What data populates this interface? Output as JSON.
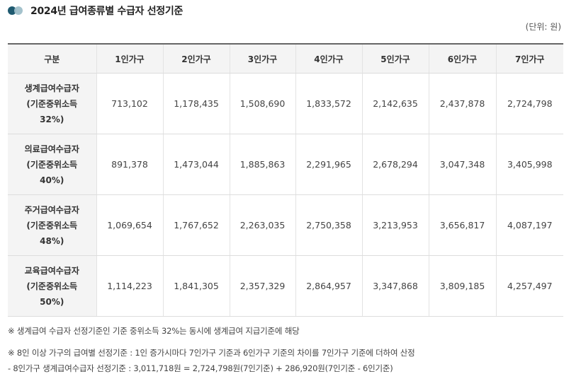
{
  "title": "2024년 급여종류별 수급자 선정기준",
  "unit": "(단위: 원)",
  "table": {
    "headers": [
      "구분",
      "1인가구",
      "2인가구",
      "3인가구",
      "4인가구",
      "5인가구",
      "6인가구",
      "7인가구"
    ],
    "rows": [
      {
        "label": [
          "생계급여수급자",
          "(기준중위소득",
          "32%)"
        ],
        "values": [
          "713,102",
          "1,178,435",
          "1,508,690",
          "1,833,572",
          "2,142,635",
          "2,437,878",
          "2,724,798"
        ]
      },
      {
        "label": [
          "의료급여수급자",
          "(기준중위소득",
          "40%)"
        ],
        "values": [
          "891,378",
          "1,473,044",
          "1,885,863",
          "2,291,965",
          "2,678,294",
          "3,047,348",
          "3,405,998"
        ]
      },
      {
        "label": [
          "주거급여수급자",
          "(기준중위소득",
          "48%)"
        ],
        "values": [
          "1,069,654",
          "1,767,652",
          "2,263,035",
          "2,750,358",
          "3,213,953",
          "3,656,817",
          "4,087,197"
        ]
      },
      {
        "label": [
          "교육급여수급자",
          "(기준중위소득",
          "50%)"
        ],
        "values": [
          "1,114,223",
          "1,841,305",
          "2,357,329",
          "2,864,957",
          "3,347,868",
          "3,809,185",
          "4,257,497"
        ]
      }
    ]
  },
  "notes": [
    "※ 생계급여 수급자 선정기준인 기준 중위소득 32%는 동시에 생계급여 지급기준에 해당",
    "※ 8인 이상 가구의 급여별 선정기준 : 1인 증가시마다 7인가구 기준과 6인가구 기준의 차이를 7인가구 기준에 더하여 산정",
    "- 8인가구 생계급여수급자 선정기준 : 3,011,718원 = 2,724,798원(7인기준) + 286,920원(7인기준 - 6인기준)"
  ]
}
